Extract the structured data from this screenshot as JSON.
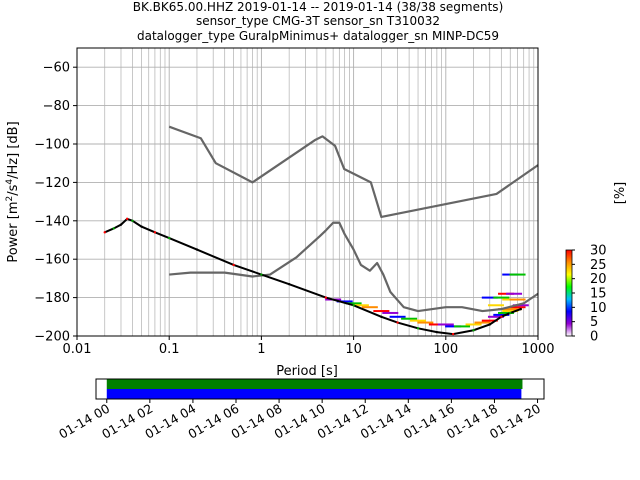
{
  "title": {
    "line1": "BK.BK65.00.HHZ   2019-01-14 -- 2019-01-14  (38/38 segments)",
    "line2": "sensor_type CMG-3T sensor_sn T310032",
    "line3": "datalogger_type GuralpMinimus+ datalogger_sn MINP-DC59"
  },
  "chart_data": [
    {
      "type": "heatmap",
      "subtype": "probabilistic power spectral density",
      "xlabel": "Period [s]",
      "ylabel": "Power [m²/s⁴/Hz] [dB]",
      "ylabel_parts": {
        "pre": "Power [m",
        "sup1": "2",
        "mid": "/s",
        "sup2": "4",
        "post": "/Hz] [dB]"
      },
      "x_scale": "log",
      "xlim": [
        0.01,
        1000
      ],
      "ylim": [
        -200,
        -50
      ],
      "x_ticks": [
        0.01,
        0.1,
        1,
        10,
        100,
        1000
      ],
      "x_tick_labels": [
        "0.01",
        "0.1",
        "1",
        "10",
        "100",
        "1000"
      ],
      "y_ticks": [
        -200,
        -180,
        -160,
        -140,
        -120,
        -100,
        -80,
        -60
      ],
      "y_tick_labels": [
        "−200",
        "−180",
        "−160",
        "−140",
        "−120",
        "−100",
        "−80",
        "−60"
      ],
      "grid": true,
      "noise_models": [
        {
          "name": "NHNM",
          "color": "#666666",
          "points": [
            [
              0.1,
              -91
            ],
            [
              0.22,
              -97
            ],
            [
              0.32,
              -110
            ],
            [
              0.8,
              -120
            ],
            [
              3.8,
              -98
            ],
            [
              4.6,
              -96
            ],
            [
              6.3,
              -101
            ],
            [
              7.9,
              -113
            ],
            [
              15.4,
              -120
            ],
            [
              20,
              -138
            ],
            [
              354.8,
              -126
            ],
            [
              1000,
              -111
            ]
          ]
        },
        {
          "name": "NLNM",
          "color": "#666666",
          "points": [
            [
              0.1,
              -168
            ],
            [
              0.17,
              -167
            ],
            [
              0.4,
              -167
            ],
            [
              0.8,
              -169
            ],
            [
              1.24,
              -168
            ],
            [
              2.4,
              -159
            ],
            [
              4.3,
              -148
            ],
            [
              5,
              -145
            ],
            [
              6,
              -141
            ],
            [
              7,
              -141
            ],
            [
              8,
              -147
            ],
            [
              10,
              -155
            ],
            [
              12,
              -163
            ],
            [
              15,
              -166
            ],
            [
              18,
              -162
            ],
            [
              21,
              -168
            ],
            [
              25,
              -177
            ],
            [
              35,
              -185
            ],
            [
              50,
              -187
            ],
            [
              100,
              -185
            ],
            [
              150,
              -185
            ],
            [
              250,
              -187
            ],
            [
              400,
              -186
            ],
            [
              700,
              -183
            ],
            [
              1000,
              -178
            ]
          ]
        }
      ],
      "psd_mode": [
        [
          0.02,
          -146
        ],
        [
          0.025,
          -144
        ],
        [
          0.03,
          -142
        ],
        [
          0.035,
          -139
        ],
        [
          0.04,
          -140
        ],
        [
          0.05,
          -143
        ],
        [
          0.07,
          -146
        ],
        [
          0.1,
          -149
        ],
        [
          0.2,
          -155
        ],
        [
          0.5,
          -163
        ],
        [
          1,
          -168
        ],
        [
          2,
          -173
        ],
        [
          5,
          -180
        ],
        [
          10,
          -184
        ],
        [
          20,
          -190
        ],
        [
          30,
          -193
        ],
        [
          50,
          -196
        ],
        [
          80,
          -198
        ],
        [
          120,
          -199
        ],
        [
          200,
          -197
        ],
        [
          300,
          -194
        ],
        [
          400,
          -190
        ],
        [
          500,
          -188
        ],
        [
          650,
          -186
        ]
      ],
      "psd_spread_points": [
        [
          6,
          -181
        ],
        [
          8,
          -182
        ],
        [
          10,
          -183
        ],
        [
          12,
          -184
        ],
        [
          15,
          -185
        ],
        [
          20,
          -187
        ],
        [
          25,
          -188
        ],
        [
          30,
          -190
        ],
        [
          40,
          -191
        ],
        [
          50,
          -192
        ],
        [
          60,
          -193
        ],
        [
          80,
          -194
        ],
        [
          100,
          -194
        ],
        [
          120,
          -195
        ],
        [
          150,
          -195
        ],
        [
          200,
          -194
        ],
        [
          250,
          -193
        ],
        [
          300,
          -192
        ],
        [
          350,
          -190
        ],
        [
          400,
          -189
        ],
        [
          450,
          -188
        ],
        [
          500,
          -187
        ],
        [
          550,
          -186
        ],
        [
          600,
          -185
        ],
        [
          650,
          -184
        ],
        [
          300,
          -180
        ],
        [
          400,
          -180
        ],
        [
          500,
          -181
        ],
        [
          600,
          -181
        ],
        [
          450,
          -178
        ],
        [
          550,
          -178
        ],
        [
          500,
          -168
        ],
        [
          600,
          -168
        ],
        [
          350,
          -184
        ],
        [
          450,
          -186
        ]
      ],
      "colorbar": {
        "label": "[%]",
        "range": [
          0,
          30
        ],
        "ticks": [
          0,
          5,
          10,
          15,
          20,
          25,
          30
        ],
        "tick_labels": [
          "0",
          "5",
          "10",
          "15",
          "20",
          "25",
          "30"
        ],
        "colors": [
          "#ffffff",
          "#9400d3",
          "#0000ff",
          "#00bfff",
          "#00ff00",
          "#ffff00",
          "#ff8c00",
          "#ff0000"
        ]
      }
    },
    {
      "type": "bar",
      "subtype": "data coverage timeline",
      "x_tick_labels": [
        "01-14 00",
        "01-14 02",
        "01-14 04",
        "01-14 06",
        "01-14 08",
        "01-14 10",
        "01-14 12",
        "01-14 14",
        "01-14 16",
        "01-14 18",
        "01-14 20"
      ],
      "x_tick_hours": [
        0,
        2,
        4,
        6,
        8,
        10,
        12,
        14,
        16,
        18,
        20
      ],
      "xlim_hours": [
        -0.5,
        20.3
      ],
      "series": [
        {
          "color": "#008000",
          "start_hour": 0,
          "end_hour": 19.3
        },
        {
          "color": "#0000ff",
          "start_hour": 0,
          "end_hour": 19.25
        }
      ]
    }
  ]
}
